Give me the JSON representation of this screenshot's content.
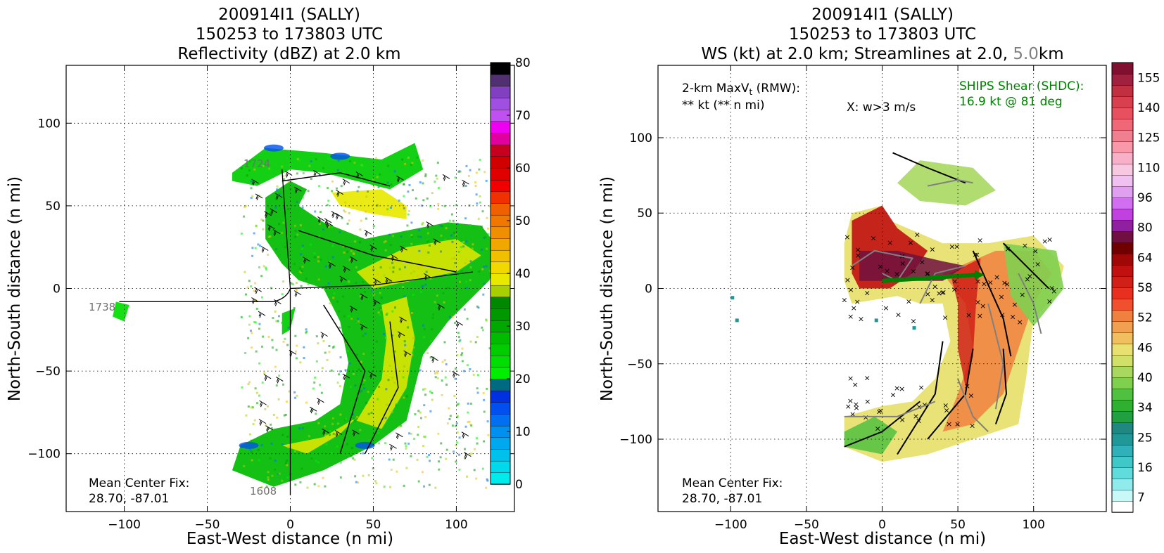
{
  "panels": [
    {
      "title_lines": [
        "200914I1 (SALLY)",
        "150253 to 173803 UTC",
        "Reflectivity (dBZ) at 2.0 km"
      ],
      "xlabel": "East-West distance (n mi)",
      "ylabel": "North-South distance (n mi)",
      "center_fix_label": "Mean Center Fix:",
      "center_fix_value": "28.70, -87.01",
      "track_labels": [
        "1738",
        "1724",
        "1608"
      ]
    },
    {
      "title_lines": [
        "200914I1 (SALLY)",
        "150253 to 173803 UTC"
      ],
      "title_line3_a": "WS (kt) at 2.0 km; Streamlines at 2.0, ",
      "title_line3_b": "5.0",
      "title_line3_c": "km",
      "xlabel": "East-West distance (n mi)",
      "ylabel": "North-South distance (n mi)",
      "maxvt_line1": "2-km MaxV",
      "maxvt_sub": "t",
      "maxvt_line1_tail": " (RMW):",
      "maxvt_line2": "** kt (** n mi)",
      "w_legend": "X: w>3 m/s",
      "shear_line1": "SHIPS Shear (SHDC):",
      "shear_line2": "16.9 kt @ 81 deg",
      "center_fix_label": "Mean Center Fix:",
      "center_fix_value": "28.70, -87.01"
    }
  ],
  "colors": {
    "shear_text": "#008000",
    "streamline_2km": "#000000",
    "streamline_5km": "#808080"
  },
  "chart_data": [
    {
      "type": "heatmap",
      "title": "200914I1 (SALLY) 150253 to 173803 UTC Reflectivity (dBZ) at 2.0 km",
      "xlabel": "East-West distance (n mi)",
      "ylabel": "North-South distance (n mi)",
      "xlim": [
        -135,
        135
      ],
      "ylim": [
        -135,
        135
      ],
      "xticks": [
        -100,
        -50,
        0,
        50,
        100
      ],
      "yticks": [
        -100,
        -50,
        0,
        50,
        100
      ],
      "grid": true,
      "colorbar": {
        "min": 0,
        "max": 80,
        "ticks": [
          0,
          10,
          20,
          30,
          40,
          50,
          60,
          70,
          80
        ],
        "colors": [
          "#00ecec",
          "#00d8ec",
          "#00c0ec",
          "#00a8f0",
          "#0090f0",
          "#0070f0",
          "#0050f0",
          "#0030e0",
          "#006a80",
          "#00ee00",
          "#00dd00",
          "#00cc00",
          "#00bb00",
          "#00a800",
          "#009800",
          "#008800",
          "#a8d000",
          "#e8e800",
          "#f0d800",
          "#f0c000",
          "#f0a800",
          "#f09000",
          "#f07800",
          "#f06000",
          "#f03000",
          "#f00000",
          "#e00000",
          "#d00000",
          "#c80020",
          "#e000a0",
          "#f000f0",
          "#c050f0",
          "#a050e0",
          "#8040c0",
          "#503070",
          "#000000"
        ]
      },
      "center_fix": [
        28.7,
        -87.01
      ],
      "track_labels": [
        "1738",
        "1724",
        "1608"
      ]
    },
    {
      "type": "heatmap",
      "title": "200914I1 (SALLY) 150253 to 173803 UTC WS (kt) at 2.0 km; Streamlines at 2.0, 5.0km",
      "xlabel": "East-West distance (n mi)",
      "ylabel": "North-South distance (n mi)",
      "xlim": [
        -148,
        148
      ],
      "ylim": [
        -148,
        148
      ],
      "xticks": [
        -100,
        -50,
        0,
        50,
        100
      ],
      "yticks": [
        -100,
        -50,
        0,
        50,
        100
      ],
      "grid": true,
      "colorbar": {
        "tick_labels": [
          "7",
          "16",
          "25",
          "34",
          "40",
          "46",
          "52",
          "58",
          "64",
          "80",
          "96",
          "110",
          "125",
          "140",
          "155"
        ],
        "colors": [
          "#ffffff",
          "#c8f8f8",
          "#90ecec",
          "#60dcdc",
          "#40c8c8",
          "#30b0b8",
          "#209898",
          "#208880",
          "#20a040",
          "#30b030",
          "#50c040",
          "#80d050",
          "#a8d860",
          "#d0e068",
          "#e8e070",
          "#f0c060",
          "#f0a050",
          "#f08040",
          "#f05030",
          "#e83020",
          "#d02018",
          "#c01010",
          "#a00808",
          "#700000",
          "#701040",
          "#9020a0",
          "#c040e0",
          "#d070f0",
          "#e0a0f0",
          "#f0c0f0",
          "#f8c8e0",
          "#f8b0c8",
          "#f898a8",
          "#f08090",
          "#f06878",
          "#e85060",
          "#d84050",
          "#c03040",
          "#a02040",
          "#801030"
        ]
      },
      "shear_kt": 16.9,
      "shear_dir_deg": 81,
      "shear_vector": {
        "from": [
          0,
          5
        ],
        "to": [
          62,
          9
        ]
      },
      "center_fix": [
        28.7,
        -87.01
      ]
    }
  ]
}
